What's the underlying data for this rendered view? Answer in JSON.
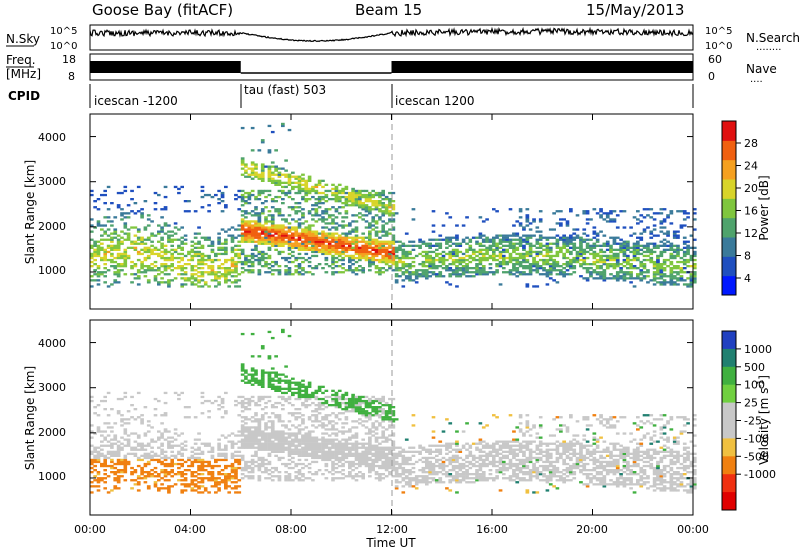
{
  "header": {
    "station": "Goose Bay (fitACF)",
    "beam": "Beam 15",
    "date": "15/May/2013"
  },
  "noise_panel": {
    "left_label": "N.Sky",
    "right_label": "N.Search",
    "right_marker": "........",
    "ytick_top": "10^5",
    "ytick_bottom": "10^0"
  },
  "freq_panel": {
    "left_label_line1": "Freq.",
    "left_label_line2": "[MHz]",
    "right_label": "Nave",
    "right_marker": "....",
    "left_ticks": [
      "18",
      "8"
    ],
    "right_ticks": [
      "60",
      "0"
    ]
  },
  "cpid": {
    "label": "CPID",
    "segments": [
      {
        "name": "icescan -1200",
        "start_h": 0,
        "end_h": 6
      },
      {
        "name": "tau (fast) 503",
        "start_h": 6,
        "end_h": 12
      },
      {
        "name": "icescan 1200",
        "start_h": 12,
        "end_h": 24
      }
    ]
  },
  "colors": {
    "power": [
      "#0018ff",
      "#1f4fbf",
      "#3a7a9a",
      "#4fa36c",
      "#7fc63e",
      "#d8d42a",
      "#f5a020",
      "#f06010",
      "#e01010"
    ],
    "velocity": [
      "#2040c0",
      "#208070",
      "#40b040",
      "#70d040",
      "#c8c8c8",
      "#c8c8c8",
      "#f0c040",
      "#f08010",
      "#f03010",
      "#e00000"
    ]
  },
  "x_axis": {
    "label": "Time UT",
    "ticks": [
      "00:00",
      "04:00",
      "08:00",
      "12:00",
      "16:00",
      "20:00",
      "00:00"
    ]
  },
  "power_panel": {
    "ylabel": "Slant Range [km]",
    "yticks": [
      "4000",
      "3000",
      "2000",
      "1000"
    ],
    "colorbar_label": "Power [dB]",
    "colorbar_ticks": [
      "28",
      "24",
      "20",
      "16",
      "12",
      "8",
      "4"
    ]
  },
  "velocity_panel": {
    "ylabel": "Slant Range [km]",
    "yticks": [
      "4000",
      "3000",
      "2000",
      "1000"
    ],
    "colorbar_label": "Velocity [m s",
    "colorbar_label_sup": "-1",
    "colorbar_label_end": "]",
    "colorbar_ticks": [
      "1000",
      "500",
      "100",
      "25",
      "-25",
      "-100",
      "-500",
      "-1000"
    ]
  },
  "chart_data": {
    "type": "heatmap",
    "x_unit": "hours UT",
    "xlim": [
      0,
      24
    ],
    "ylim_km": [
      180,
      4500
    ],
    "echo_bands": [
      {
        "start_h": 0,
        "end_h": 6,
        "range_km": [
          700,
          2900
        ],
        "power_db": 10,
        "velocity": -150
      },
      {
        "start_h": 6,
        "end_h": 12,
        "range_km": [
          1000,
          3800
        ],
        "power_db": 24,
        "velocity": 0
      },
      {
        "start_h": 12,
        "end_h": 24,
        "range_km": [
          700,
          2400
        ],
        "power_db": 14,
        "velocity": 0
      }
    ]
  }
}
